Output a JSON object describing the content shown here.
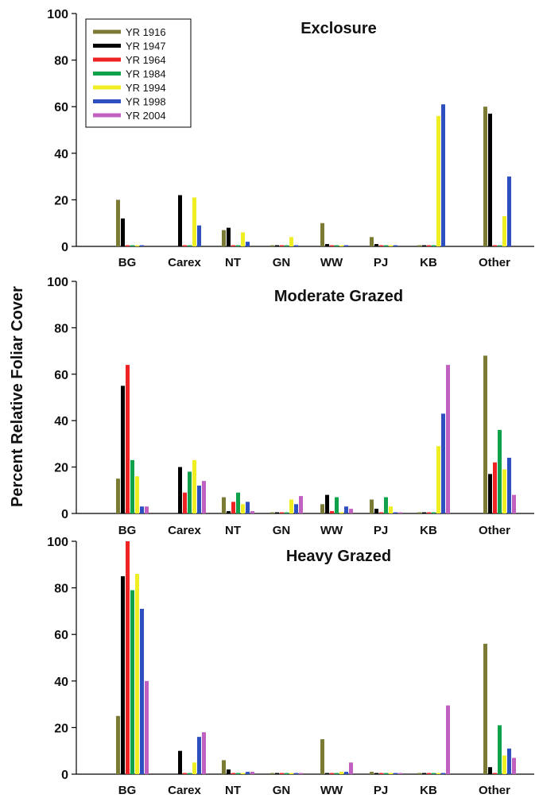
{
  "chart_data": {
    "type": "bar",
    "ylabel": "Percent Relative Foliar Cover",
    "categories": [
      "BG",
      "Carex",
      "NT",
      "GN",
      "WW",
      "PJ",
      "KB",
      "Other"
    ],
    "series_names": [
      "YR 1916",
      "YR 1947",
      "YR 1964",
      "YR 1984",
      "YR 1994",
      "YR 1998",
      "YR 2004"
    ],
    "series_colors": [
      "#7b7b35",
      "#000000",
      "#ee2222",
      "#10a24a",
      "#eeee22",
      "#2e4fbf",
      "#c060c0"
    ],
    "ylim": [
      0,
      100
    ],
    "yticks": [
      0,
      20,
      40,
      60,
      80,
      100
    ],
    "legend_position": "top-left",
    "panels": [
      {
        "title": "Exclosure",
        "series": [
          {
            "name": "YR 1916",
            "values": [
              20,
              0,
              7,
              0.5,
              10,
              4,
              0.5,
              60
            ]
          },
          {
            "name": "YR 1947",
            "values": [
              12,
              22,
              8,
              0.5,
              1,
              1,
              0.5,
              57
            ]
          },
          {
            "name": "YR 1964",
            "values": [
              0.5,
              0.5,
              0.5,
              0.5,
              0.5,
              0.5,
              0.5,
              0.5
            ]
          },
          {
            "name": "YR 1984",
            "values": [
              0.5,
              0.5,
              0.5,
              0.5,
              0.5,
              0.5,
              0.5,
              0.5
            ]
          },
          {
            "name": "YR 1994",
            "values": [
              0.5,
              21,
              6,
              4,
              0.5,
              0.5,
              56,
              13
            ]
          },
          {
            "name": "YR 1998",
            "values": [
              0.5,
              9,
              2,
              0.5,
              0.5,
              0.5,
              61,
              30
            ]
          }
        ]
      },
      {
        "title": "Moderate Grazed",
        "series": [
          {
            "name": "YR 1916",
            "values": [
              15,
              0,
              7,
              0.5,
              4,
              6,
              0.5,
              68
            ]
          },
          {
            "name": "YR 1947",
            "values": [
              55,
              20,
              1,
              0.5,
              8,
              2,
              0.5,
              17
            ]
          },
          {
            "name": "YR 1964",
            "values": [
              64,
              9,
              5,
              0.5,
              1,
              0.5,
              0.5,
              22
            ]
          },
          {
            "name": "YR 1984",
            "values": [
              23,
              18,
              9,
              0.5,
              7,
              7,
              0.5,
              36
            ]
          },
          {
            "name": "YR 1994",
            "values": [
              16,
              23,
              4,
              6,
              0.5,
              3,
              29,
              19
            ]
          },
          {
            "name": "YR 1998",
            "values": [
              3,
              12,
              5,
              4,
              3,
              0.5,
              43,
              24
            ]
          },
          {
            "name": "YR 2004",
            "values": [
              3,
              14,
              1,
              7.5,
              2,
              0.5,
              64,
              8
            ]
          }
        ]
      },
      {
        "title": "Heavy Grazed",
        "series": [
          {
            "name": "YR 1916",
            "values": [
              25,
              0,
              6,
              0.5,
              15,
              1,
              0.5,
              56
            ]
          },
          {
            "name": "YR 1947",
            "values": [
              85,
              10,
              2,
              0.5,
              0.5,
              0.5,
              0.5,
              3
            ]
          },
          {
            "name": "YR 1964",
            "values": [
              100,
              0.5,
              0.5,
              0.5,
              0.5,
              0.5,
              0.5,
              0.5
            ]
          },
          {
            "name": "YR 1984",
            "values": [
              79,
              0.5,
              0.5,
              0.5,
              0.5,
              0.5,
              0.5,
              21
            ]
          },
          {
            "name": "YR 1994",
            "values": [
              86,
              5,
              0.5,
              0.5,
              1,
              0.5,
              0.5,
              8
            ]
          },
          {
            "name": "YR 1998",
            "values": [
              71,
              16,
              1,
              0.5,
              1,
              0.5,
              0.5,
              11
            ]
          },
          {
            "name": "YR 2004",
            "values": [
              40,
              18,
              1,
              0.5,
              5,
              0.5,
              29.5,
              7
            ]
          }
        ]
      }
    ]
  }
}
